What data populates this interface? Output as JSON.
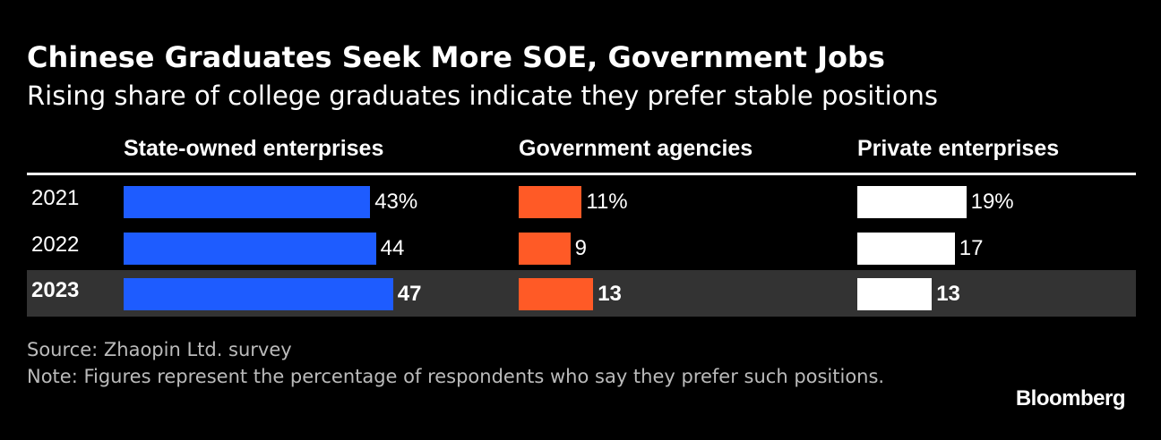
{
  "chart_data": {
    "type": "bar",
    "title": "Chinese Graduates Seek More SOE, Government Jobs",
    "subtitle": "Rising share of college graduates indicate they prefer stable positions",
    "categories": [
      "2021",
      "2022",
      "2023"
    ],
    "highlight_category": "2023",
    "series": [
      {
        "name": "State-owned enterprises",
        "color": "#1e5cff",
        "values": [
          43,
          44,
          47
        ],
        "labels": [
          "43%",
          "44",
          "47"
        ]
      },
      {
        "name": "Government agencies",
        "color": "#ff5a26",
        "values": [
          11,
          9,
          13
        ],
        "labels": [
          "11%",
          "9",
          "13"
        ]
      },
      {
        "name": "Private enterprises",
        "color": "#ffffff",
        "values": [
          19,
          17,
          13
        ],
        "labels": [
          "19%",
          "17",
          "13"
        ]
      }
    ],
    "source": "Source: Zhaopin Ltd. survey",
    "note": "Note: Figures represent the percentage of respondents who say they prefer such positions.",
    "logo": "Bloomberg"
  }
}
